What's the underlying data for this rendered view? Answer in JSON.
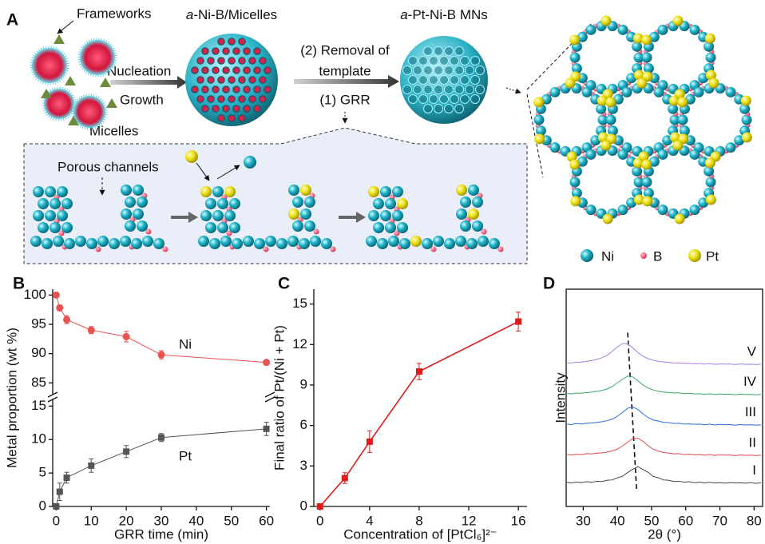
{
  "schematic": {
    "label": "A",
    "frameworks": "Frameworks",
    "micelles": "Micelles",
    "nucleation": "Nucleation",
    "growth": "Growth",
    "sphere1_title": {
      "italic": "a",
      "text": "-Ni-B/Micelles"
    },
    "step2": [
      "(2) Removal of",
      "template"
    ],
    "step1": "(1) GRR",
    "sphere2_title": {
      "italic": "a",
      "text": "-Pt-Ni-B MNs"
    },
    "porous_channels": "Porous channels",
    "legend": [
      "Ni",
      "B",
      "Pt"
    ]
  },
  "chart_data": [
    {
      "label": "B",
      "type": "line",
      "x_label": "GRR time (min)",
      "y_label": "Metal proportion (wt %)",
      "broken_axis": true,
      "x": [
        0,
        1,
        3,
        10,
        20,
        30,
        60
      ],
      "xlim": [
        -1,
        61
      ],
      "xticks": [
        0,
        10,
        20,
        30,
        40,
        50,
        60
      ],
      "ylim": [
        0,
        16
      ],
      "yticks": [
        0,
        5,
        10,
        15
      ],
      "y2lim": [
        83,
        101
      ],
      "y2ticks": [
        85,
        90,
        95,
        100
      ],
      "series": [
        {
          "name": "Ni",
          "color": "#e8524f",
          "axis": "y2",
          "marker": "circle",
          "values": [
            100,
            97.8,
            95.8,
            94,
            92.9,
            89.8,
            88.5
          ],
          "errors": [
            0,
            0.5,
            0.7,
            0.6,
            0.9,
            0.7,
            0.4
          ]
        },
        {
          "name": "Pt",
          "color": "#555555",
          "marker": "square",
          "values": [
            0,
            2.2,
            4.3,
            6.1,
            8.2,
            10.3,
            11.6
          ],
          "errors": [
            0,
            1.3,
            0.8,
            1.0,
            0.9,
            0.6,
            1.0
          ]
        }
      ]
    },
    {
      "label": "C",
      "type": "line",
      "x_label": "Concentration of [PtCl₆]²⁻",
      "y_label": "Final ratio of Pt/(Ni + Pt)",
      "x": [
        0,
        2,
        4,
        8,
        16
      ],
      "values": [
        0,
        2.1,
        4.8,
        10,
        13.7
      ],
      "errors": [
        0,
        0.4,
        0.8,
        0.6,
        0.7
      ],
      "color": "#e0191b",
      "marker": "square",
      "xlim": [
        -0.5,
        16.7
      ],
      "xticks": [
        0,
        4,
        8,
        12,
        16
      ],
      "ylim": [
        0,
        16.1
      ],
      "yticks": [
        0,
        3,
        6,
        9,
        12,
        15
      ]
    },
    {
      "label": "D",
      "type": "line",
      "x_label": "2θ (°)",
      "y_label": "Intensity",
      "x": [
        25,
        26.5,
        28,
        29.5,
        31,
        32.5,
        34,
        35.5,
        37,
        38.5,
        40,
        41.5,
        43,
        44.5,
        46,
        47.5,
        49,
        50.5,
        52,
        53.5,
        55,
        56.5,
        58,
        59.5,
        61,
        62.5,
        64,
        65.5,
        67,
        68.5,
        70,
        71.5,
        73,
        74.5,
        76,
        77.5,
        79,
        80.5,
        82
      ],
      "xlim": [
        25,
        82.5
      ],
      "xticks": [
        30,
        40,
        50,
        60,
        70,
        80
      ],
      "ylim": [
        0,
        100
      ],
      "series": [
        {
          "name": "I",
          "color": "#444444",
          "values": [
            11.1,
            10.8,
            11.2,
            11.0,
            11.4,
            11.1,
            11.6,
            11.5,
            12.1,
            12.2,
            13.2,
            13.9,
            15.6,
            17.1,
            18.3,
            17.0,
            15.7,
            13.8,
            13.2,
            12.2,
            12.1,
            11.5,
            11.6,
            11.2,
            11.4,
            10.9,
            11.2,
            10.8,
            11.1,
            10.8,
            11.0,
            10.7,
            11.0,
            10.8,
            10.9,
            10.7,
            11.0,
            10.6,
            10.9
          ]
        },
        {
          "name": "II",
          "color": "#e04a4a",
          "values": [
            24.0,
            23.7,
            24.1,
            23.9,
            24.3,
            24.2,
            24.5,
            24.7,
            25.0,
            25.6,
            26.4,
            27.9,
            29.6,
            31.2,
            31.4,
            30.0,
            27.9,
            26.3,
            25.4,
            24.8,
            24.6,
            24.2,
            24.3,
            23.9,
            24.1,
            23.8,
            23.9,
            23.6,
            23.9,
            23.5,
            23.8,
            23.6,
            23.7,
            23.4,
            23.7,
            23.5,
            23.6,
            23.4,
            23.6
          ]
        },
        {
          "name": "III",
          "color": "#2a6fd6",
          "values": [
            38.0,
            37.7,
            38.2,
            37.9,
            38.3,
            38.4,
            38.7,
            39.0,
            39.5,
            40.2,
            41.5,
            43.3,
            45.2,
            45.8,
            44.6,
            42.6,
            40.9,
            39.8,
            39.3,
            38.7,
            38.6,
            38.2,
            38.3,
            37.9,
            38.0,
            37.8,
            37.9,
            37.6,
            37.9,
            37.5,
            37.8,
            37.6,
            37.7,
            37.4,
            37.7,
            37.5,
            37.6,
            37.4,
            37.6
          ]
        },
        {
          "name": "IV",
          "color": "#3aa66a",
          "values": [
            52.0,
            51.8,
            52.2,
            52.1,
            52.5,
            52.6,
            53.0,
            53.4,
            54.1,
            55.2,
            56.9,
            58.6,
            60.0,
            59.6,
            57.8,
            55.9,
            54.5,
            53.6,
            53.0,
            52.6,
            52.5,
            52.2,
            52.3,
            51.9,
            52.1,
            51.8,
            51.9,
            51.6,
            51.9,
            51.5,
            51.8,
            51.6,
            51.7,
            51.4,
            51.7,
            51.5,
            51.6,
            51.4,
            51.6
          ]
        },
        {
          "name": "V",
          "color": "#a77ee0",
          "values": [
            66.2,
            66.0,
            66.4,
            66.4,
            66.8,
            67.2,
            67.7,
            68.5,
            69.6,
            71.4,
            73.4,
            75.0,
            74.8,
            73.0,
            70.8,
            69.1,
            68.0,
            67.3,
            66.8,
            66.5,
            66.3,
            66.0,
            66.1,
            65.8,
            65.9,
            65.6,
            65.8,
            65.5,
            65.7,
            65.4,
            65.6,
            65.5,
            65.6,
            65.3,
            65.6,
            65.4,
            65.5,
            65.3,
            65.5
          ]
        }
      ],
      "guide_line": {
        "x": [
          43,
          45.6
        ],
        "values": [
          80,
          8
        ]
      }
    }
  ]
}
